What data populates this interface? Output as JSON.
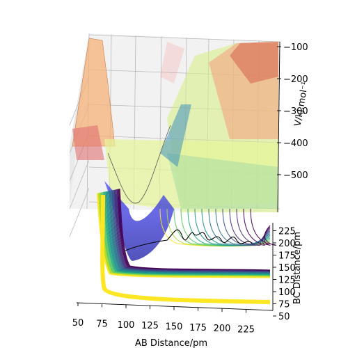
{
  "chart_data": {
    "type": "surface",
    "projection": "3d",
    "title": "",
    "xlabel": "AB Distance/pm",
    "ylabel": "BC Distance/pm",
    "zlabel": "V/kJ.mol⁻¹",
    "x_ticks": [
      50,
      75,
      100,
      125,
      150,
      175,
      200,
      225
    ],
    "y_ticks": [
      50,
      75,
      100,
      125,
      150,
      175,
      200,
      225
    ],
    "z_ticks": [
      -500,
      -400,
      -300,
      -200,
      -100
    ],
    "z_tick_labels": [
      "−500",
      "−400",
      "−300",
      "−200",
      "−100"
    ],
    "xlim": [
      50,
      250
    ],
    "ylim": [
      50,
      240
    ],
    "zlim": [
      -600,
      -80
    ],
    "grid": true,
    "colormap": "viridis",
    "series": [
      {
        "kind": "surface",
        "colormap": "spectral",
        "alpha": 0.5
      },
      {
        "kind": "contour",
        "colormap": "viridis",
        "levels": 30
      },
      {
        "kind": "trajectory",
        "color": "#000000"
      }
    ]
  }
}
